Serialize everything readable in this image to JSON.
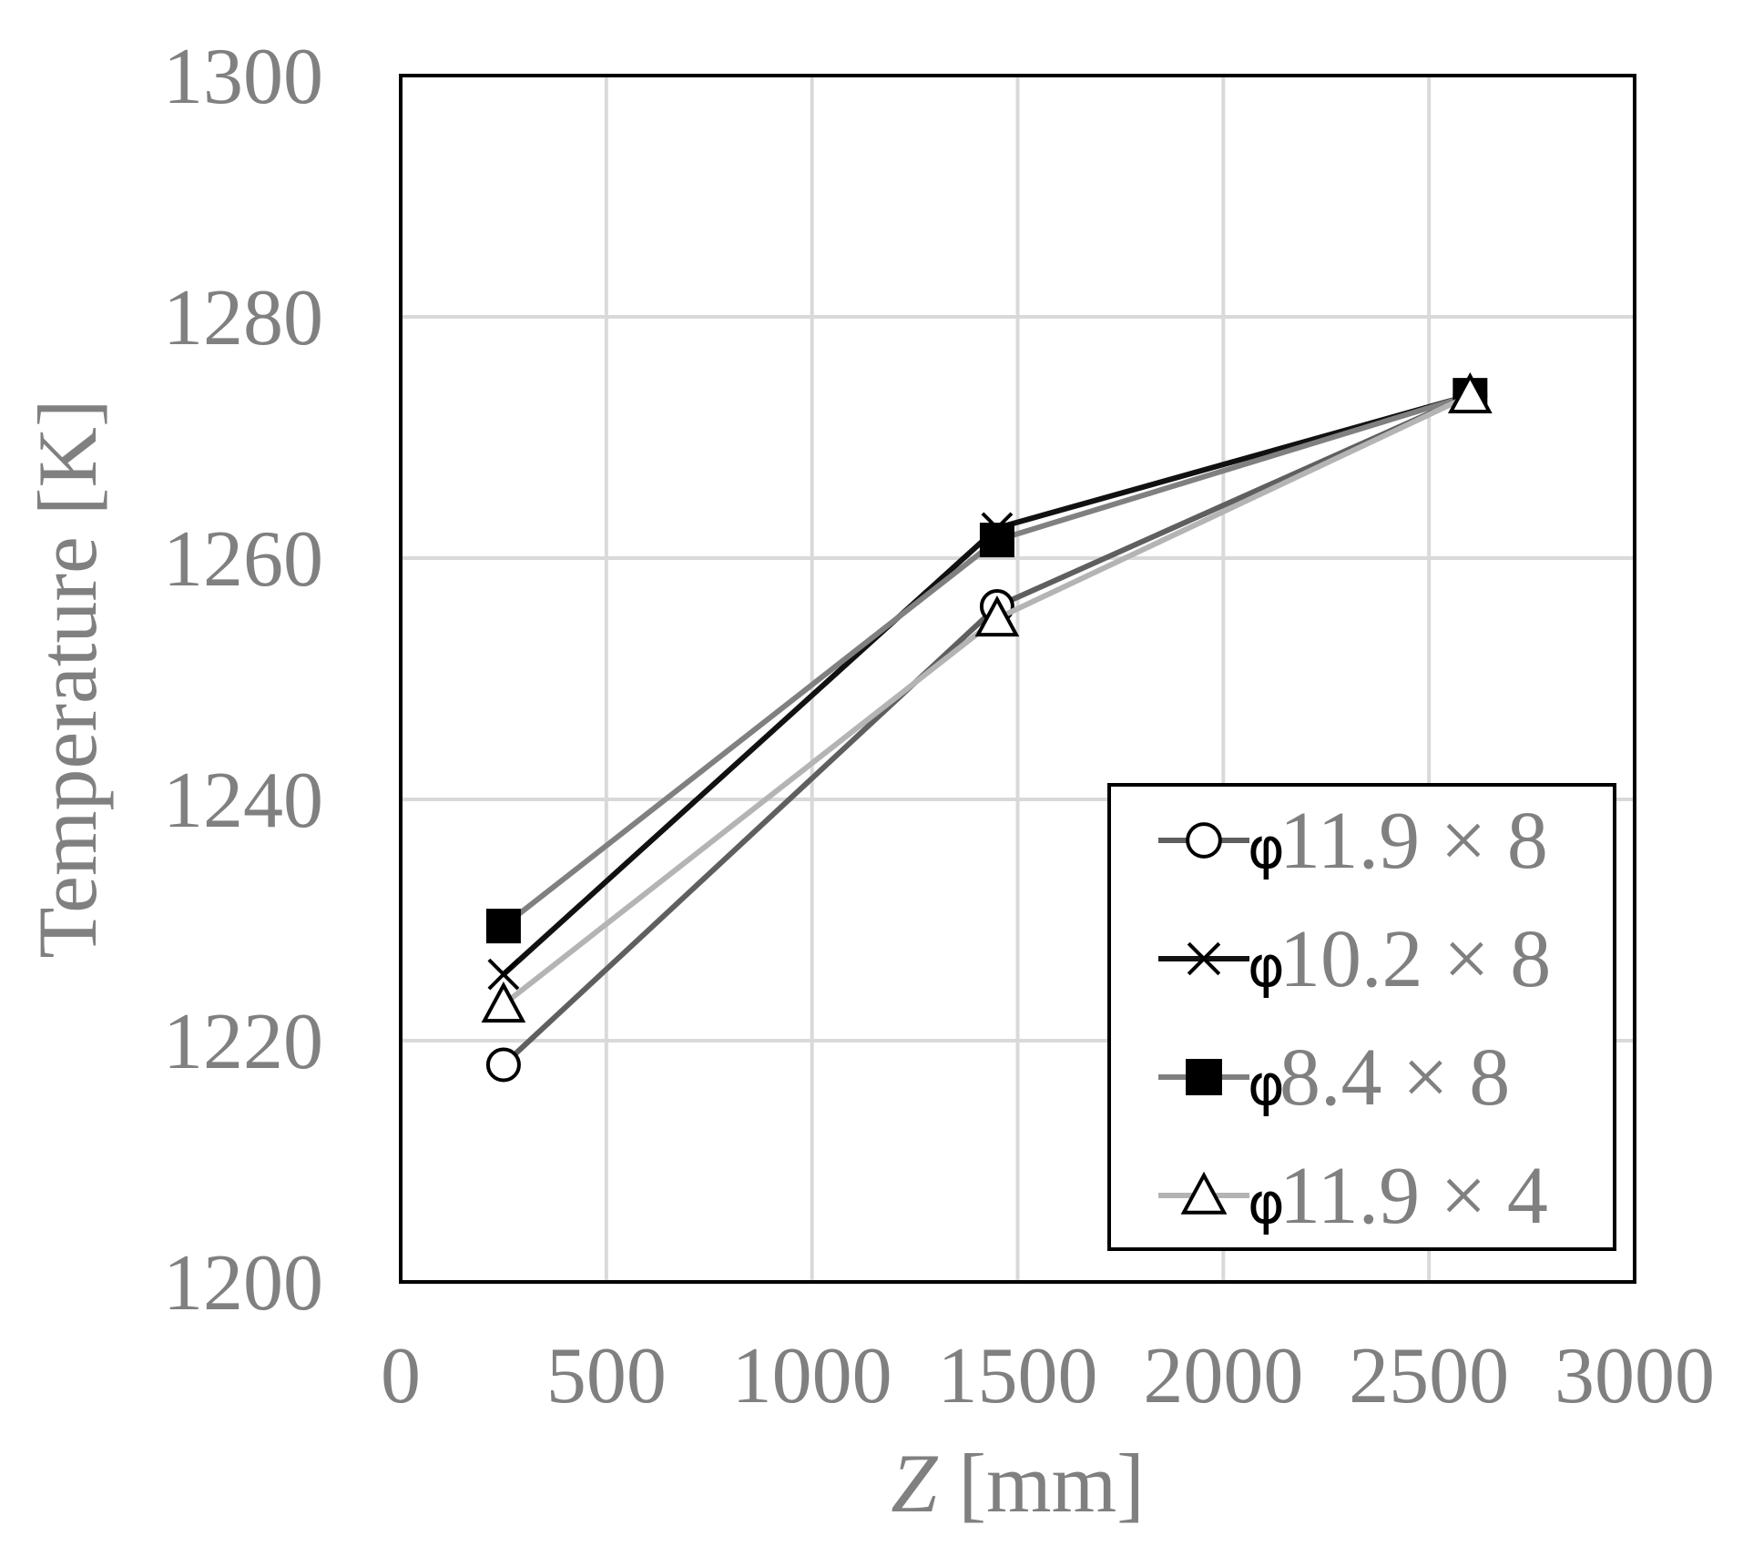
{
  "chart_data": {
    "type": "line",
    "xlabel_italic": "Z",
    "xlabel_rest": " [mm]",
    "ylabel": "Temperature [K]",
    "xlim": [
      0,
      3000
    ],
    "ylim": [
      1200,
      1300
    ],
    "xticks": [
      0,
      500,
      1000,
      1500,
      2000,
      2500,
      3000
    ],
    "yticks": [
      1200,
      1220,
      1240,
      1260,
      1280,
      1300
    ],
    "grid": true,
    "legend_position": "bottom-right",
    "series": [
      {
        "name_symbol": "φ",
        "name_text": " 11.9 × 8",
        "marker": "circle",
        "line_color": "#5f5f5f",
        "x": [
          250,
          1450,
          2600
        ],
        "y": [
          1218,
          1256,
          1273.5
        ]
      },
      {
        "name_symbol": "φ",
        "name_text": " 10.2 × 8",
        "marker": "x",
        "line_color": "#111111",
        "x": [
          250,
          1450,
          2600
        ],
        "y": [
          1225.5,
          1262.5,
          1273.5
        ]
      },
      {
        "name_symbol": "φ",
        "name_text": " 8.4 × 8",
        "marker": "square",
        "line_color": "#808080",
        "x": [
          250,
          1450,
          2600
        ],
        "y": [
          1229.5,
          1261.5,
          1273.5
        ]
      },
      {
        "name_symbol": "φ",
        "name_text": " 11.9 × 4",
        "marker": "triangle",
        "line_color": "#b4b4b4",
        "x": [
          250,
          1450,
          2600
        ],
        "y": [
          1223,
          1255,
          1273.5
        ]
      }
    ]
  }
}
